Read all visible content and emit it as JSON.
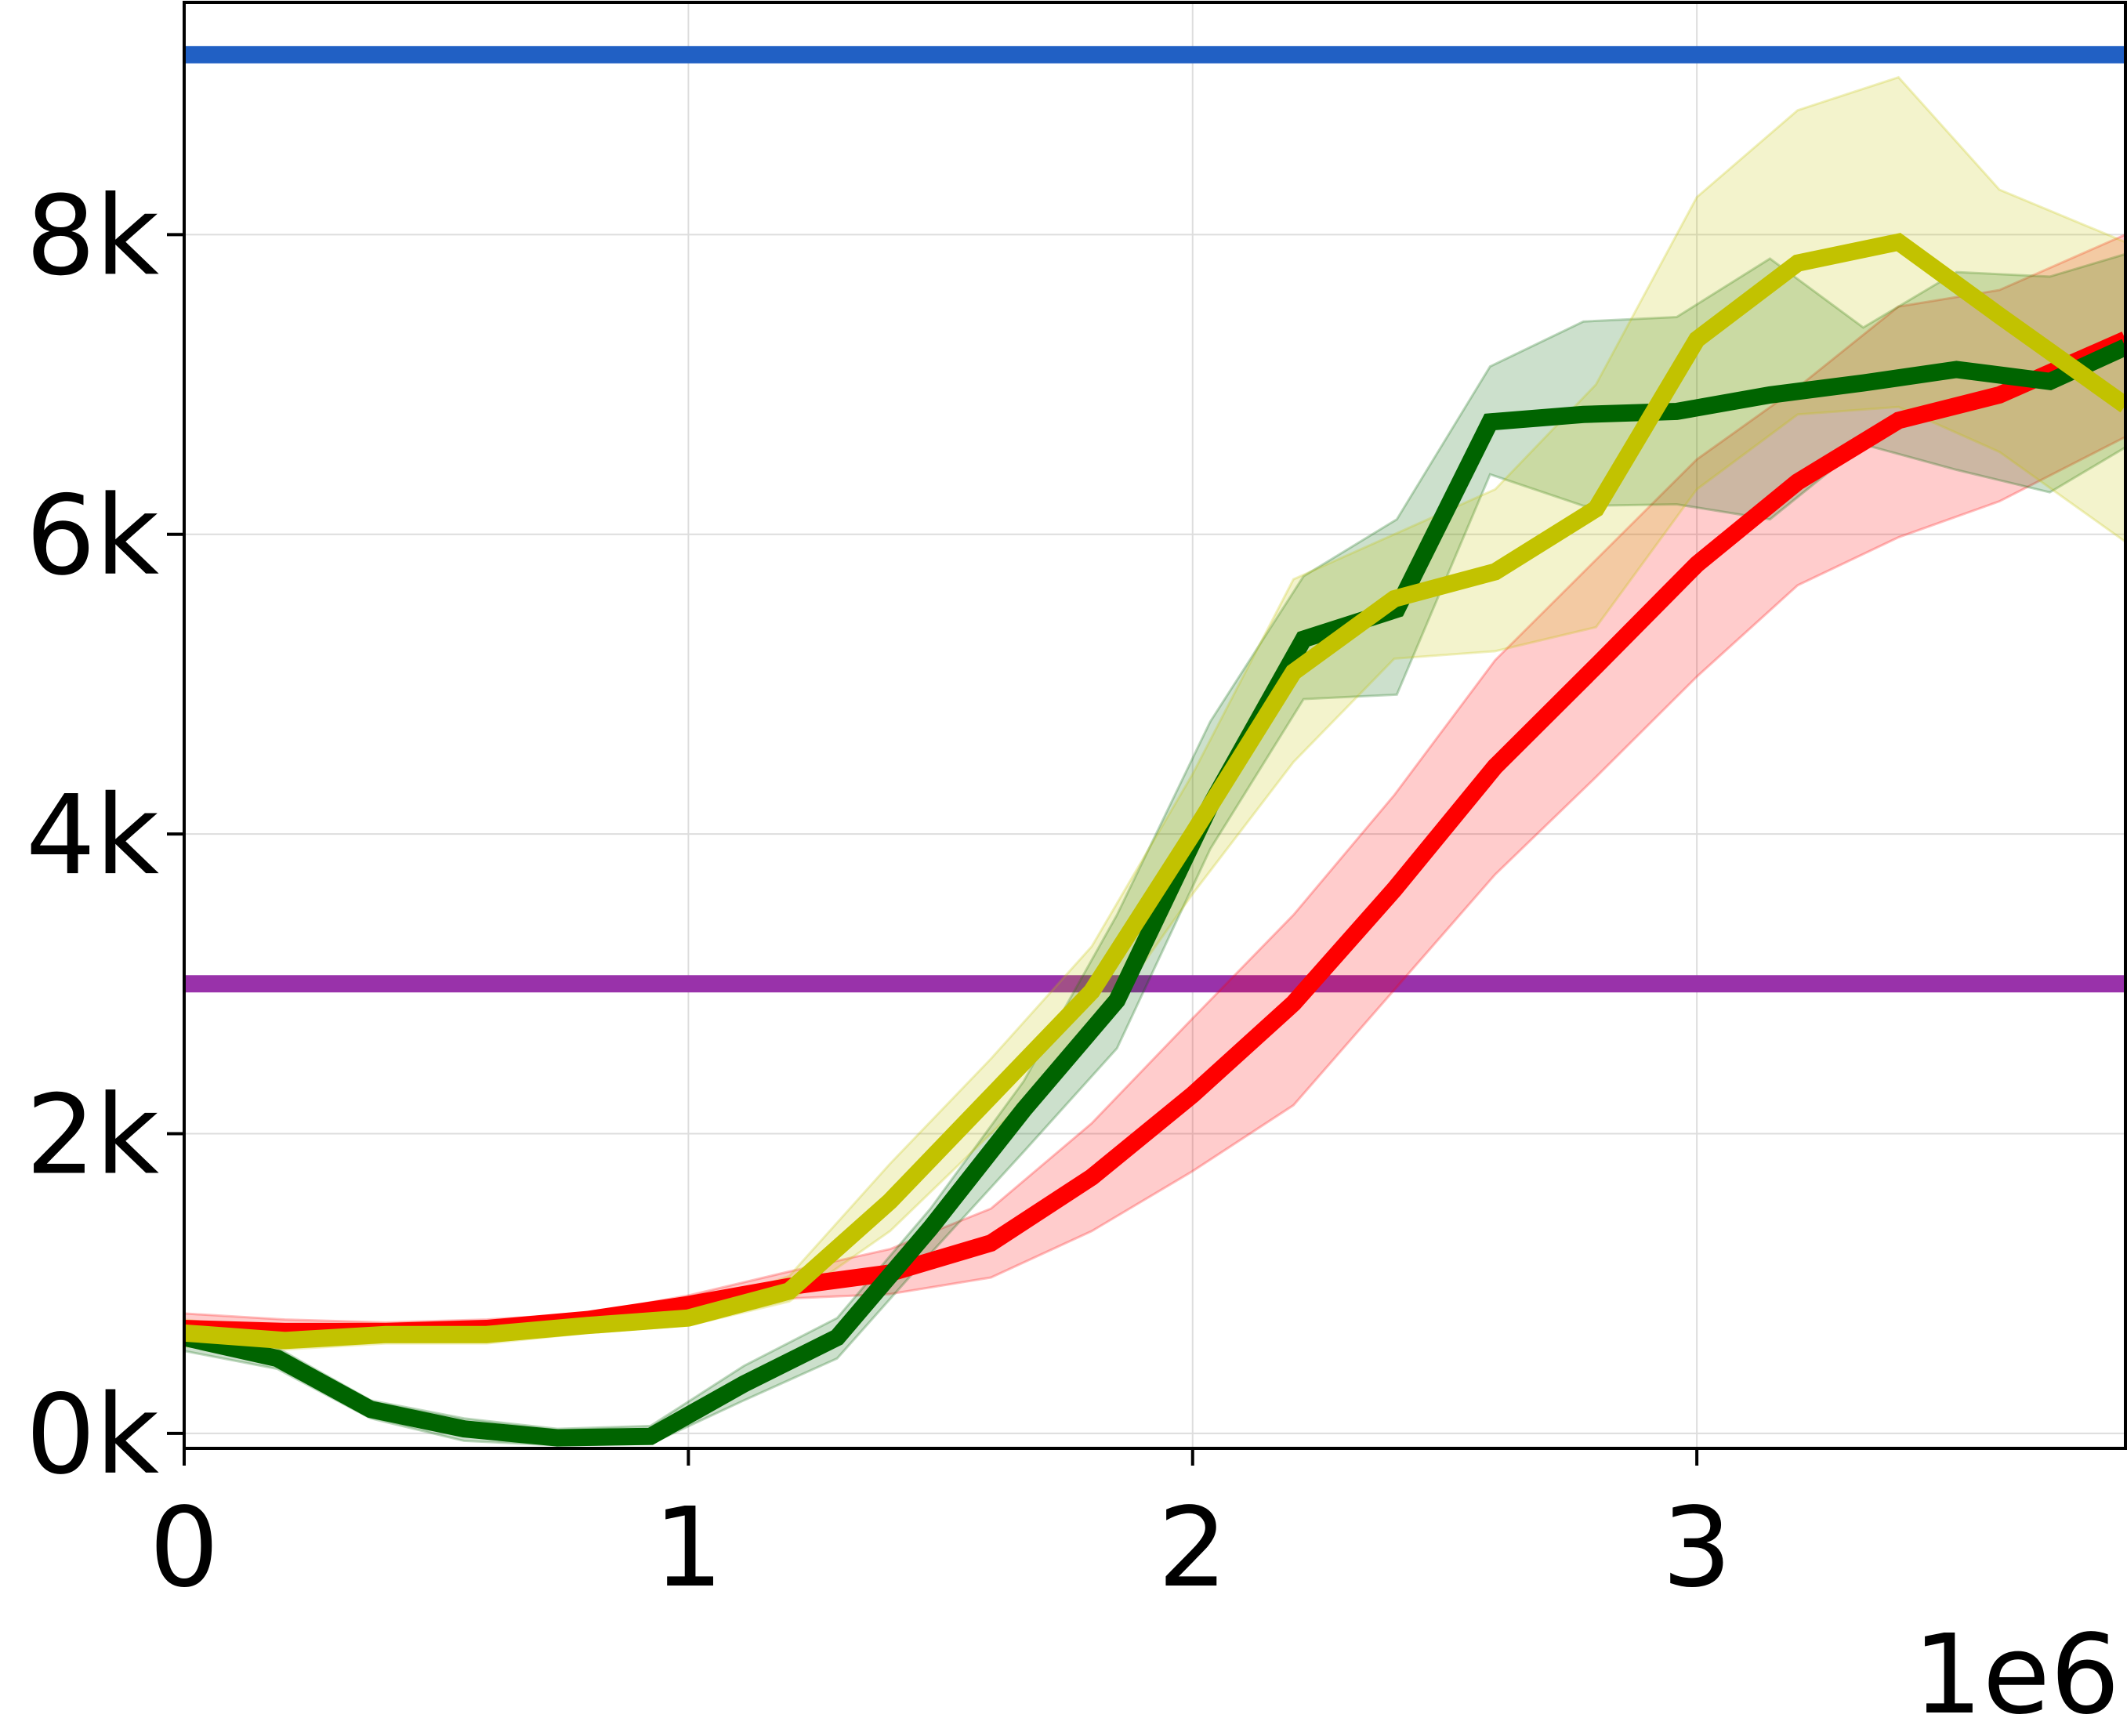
{
  "chart_data": {
    "type": "line",
    "title": "",
    "xlabel": "",
    "ylabel": "",
    "x_offset_label": "1e6",
    "xlim": [
      0,
      3.85
    ],
    "ylim": [
      -100,
      9.55
    ],
    "ylim_units": "thousands",
    "y_range": [
      -0.1,
      9.55
    ],
    "x_ticks": [
      {
        "value": 0,
        "label": "0"
      },
      {
        "value": 1,
        "label": "1"
      },
      {
        "value": 2,
        "label": "2"
      },
      {
        "value": 3,
        "label": "3"
      }
    ],
    "y_ticks": [
      {
        "value": 0,
        "label": "0k"
      },
      {
        "value": 2,
        "label": "2k"
      },
      {
        "value": 4,
        "label": "4k"
      },
      {
        "value": 6,
        "label": "6k"
      },
      {
        "value": 8,
        "label": "8k"
      }
    ],
    "grid": true,
    "legend": "none",
    "hlines": [
      {
        "value": 9.2,
        "color": "#2160c4"
      },
      {
        "value": 3.0,
        "color": "#9932aa"
      }
    ],
    "series": [
      {
        "color": "#ff0000",
        "x": [
          0,
          0.2,
          0.4,
          0.6,
          0.8,
          1.0,
          1.2,
          1.4,
          1.6,
          1.8,
          2.0,
          2.2,
          2.4,
          2.6,
          2.8,
          3.0,
          3.2,
          3.4,
          3.6,
          3.85
        ],
        "y": [
          0.7,
          0.68,
          0.68,
          0.7,
          0.76,
          0.86,
          0.98,
          1.07,
          1.27,
          1.71,
          2.26,
          2.87,
          3.63,
          4.45,
          5.12,
          5.8,
          6.35,
          6.76,
          6.93,
          7.3
        ],
        "lower": [
          0.6,
          0.6,
          0.62,
          0.64,
          0.72,
          0.8,
          0.9,
          0.93,
          1.04,
          1.35,
          1.75,
          2.19,
          2.96,
          3.73,
          4.38,
          5.05,
          5.66,
          5.98,
          6.22,
          6.65
        ],
        "upper": [
          0.8,
          0.76,
          0.74,
          0.76,
          0.8,
          0.92,
          1.08,
          1.23,
          1.5,
          2.07,
          2.77,
          3.46,
          4.26,
          5.16,
          5.83,
          6.5,
          6.98,
          7.52,
          7.63,
          8.0
        ]
      },
      {
        "color": "#006400",
        "x": [
          0,
          0.185,
          0.37,
          0.555,
          0.74,
          0.925,
          1.11,
          1.295,
          1.48,
          1.665,
          1.85,
          2.035,
          2.22,
          2.405,
          2.59,
          2.775,
          2.96,
          3.145,
          3.33,
          3.515,
          3.7,
          3.85
        ],
        "y": [
          0.64,
          0.5,
          0.16,
          0.03,
          -0.03,
          -0.02,
          0.33,
          0.64,
          1.37,
          2.16,
          2.89,
          4.19,
          5.3,
          5.5,
          6.75,
          6.8,
          6.82,
          6.93,
          7.01,
          7.1,
          7.02,
          7.25
        ],
        "lower": [
          0.55,
          0.43,
          0.1,
          -0.05,
          -0.08,
          -0.07,
          0.22,
          0.5,
          1.2,
          1.88,
          2.57,
          3.9,
          4.9,
          4.93,
          6.4,
          6.19,
          6.2,
          6.1,
          6.6,
          6.43,
          6.28,
          6.58
        ],
        "upper": [
          0.72,
          0.57,
          0.22,
          0.1,
          0.03,
          0.05,
          0.45,
          0.77,
          1.5,
          2.35,
          3.46,
          4.75,
          5.72,
          6.1,
          7.12,
          7.42,
          7.45,
          7.84,
          7.38,
          7.75,
          7.72,
          7.87
        ]
      },
      {
        "color": "#c2c200",
        "x": [
          0,
          0.2,
          0.4,
          0.6,
          0.8,
          1.0,
          1.2,
          1.4,
          1.6,
          1.8,
          2.0,
          2.2,
          2.4,
          2.6,
          2.8,
          3.0,
          3.2,
          3.4,
          3.6,
          3.85
        ],
        "y": [
          0.67,
          0.62,
          0.66,
          0.66,
          0.72,
          0.77,
          0.95,
          1.55,
          2.25,
          2.95,
          4.0,
          5.08,
          5.57,
          5.75,
          6.17,
          7.3,
          7.81,
          7.95,
          7.46,
          6.86
        ],
        "lower": [
          0.58,
          0.56,
          0.6,
          0.6,
          0.67,
          0.72,
          0.88,
          1.35,
          2.0,
          2.65,
          3.6,
          4.48,
          5.17,
          5.22,
          5.38,
          6.3,
          6.8,
          6.85,
          6.55,
          5.95
        ],
        "upper": [
          0.76,
          0.68,
          0.72,
          0.72,
          0.78,
          0.82,
          1.05,
          1.8,
          2.5,
          3.25,
          4.4,
          5.7,
          6.0,
          6.3,
          7.0,
          8.25,
          8.83,
          9.05,
          8.3,
          7.95
        ]
      }
    ]
  }
}
